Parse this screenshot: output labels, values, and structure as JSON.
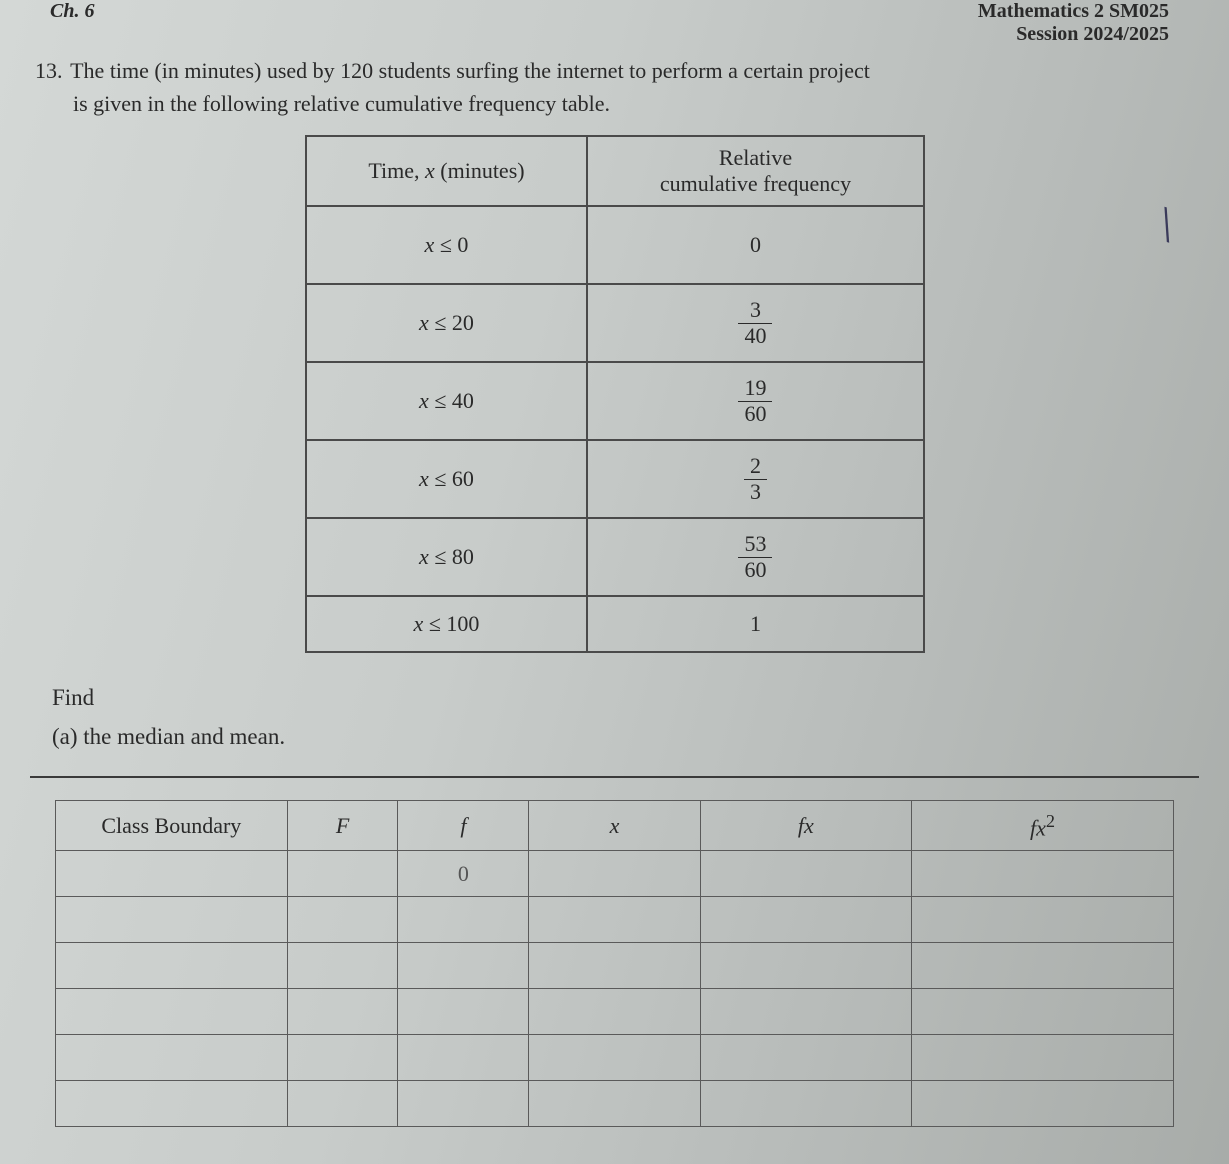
{
  "header": {
    "ch_label": "Ch. 6",
    "course_code": "Mathematics 2 SM025",
    "session": "Session 2024/2025"
  },
  "question": {
    "number": "13.",
    "text_line1": "The time (in minutes) used by 120 students surfing the internet to perform a certain project",
    "text_line2": "is given in the following relative cumulative frequency table."
  },
  "freq_table": {
    "headers": {
      "col1": "Time, x (minutes)",
      "col2_line1": "Relative",
      "col2_line2": "cumulative frequency"
    },
    "rows": [
      {
        "time_var": "x",
        "time_op": "≤ 0",
        "value_type": "int",
        "value": "0"
      },
      {
        "time_var": "x",
        "time_op": "≤ 20",
        "value_type": "frac",
        "num": "3",
        "den": "40"
      },
      {
        "time_var": "x",
        "time_op": "≤ 40",
        "value_type": "frac",
        "num": "19",
        "den": "60"
      },
      {
        "time_var": "x",
        "time_op": "≤ 60",
        "value_type": "frac",
        "num": "2",
        "den": "3"
      },
      {
        "time_var": "x",
        "time_op": "≤ 80",
        "value_type": "frac",
        "num": "53",
        "den": "60"
      },
      {
        "time_var": "x",
        "time_op": "≤ 100",
        "value_type": "int",
        "value": "1"
      }
    ]
  },
  "find": {
    "label": "Find",
    "part_a": "(a)  the median and mean."
  },
  "calc_table": {
    "headers": {
      "boundary": "Class Boundary",
      "F": "F",
      "f": "f",
      "x": "x",
      "fx": "fx",
      "fx2": "fx²"
    },
    "handwritten_zero": "0",
    "num_empty_rows": 6
  },
  "styling": {
    "background_gradient": [
      "#d4d8d6",
      "#a8aca9"
    ],
    "border_color": "#4a4a4a",
    "text_color": "#2a2a2a",
    "font_family": "Times New Roman",
    "base_fontsize": 22
  },
  "pen_mark": "\\"
}
